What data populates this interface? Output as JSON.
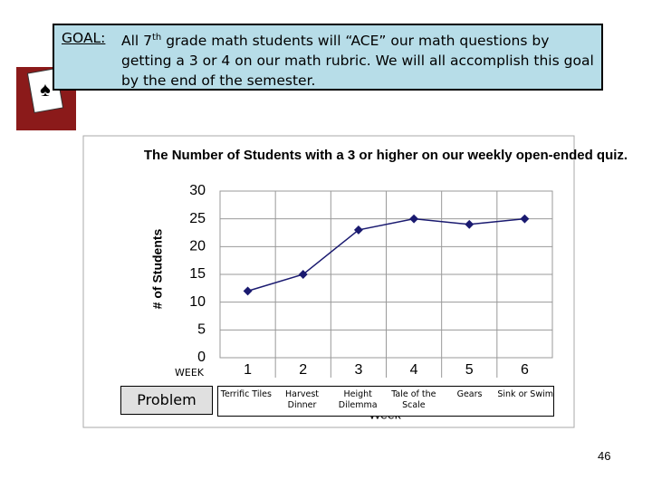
{
  "goal": {
    "label": "GOAL:",
    "text_before_sup": "All 7",
    "sup": "th",
    "text_after_sup": " grade math students will “ACE” our math questions by getting a 3 or 4 on our math rubric. We will all accomplish this goal by the end of the semester."
  },
  "chart_data": {
    "type": "line",
    "title": "The Number of Students with a 3 or higher on our weekly open-ended quiz.",
    "y_label": "# of Students",
    "x_label": "Week",
    "categories": [
      "1",
      "2",
      "3",
      "4",
      "5",
      "6"
    ],
    "series": [
      {
        "name": "Students",
        "color": "#1a1a70",
        "values": [
          12,
          15,
          23,
          25,
          24,
          25
        ]
      }
    ],
    "ylim": [
      0,
      30
    ],
    "yticks": [
      0,
      5,
      10,
      15,
      20,
      25,
      30
    ],
    "grid": true
  },
  "week_label": "WEEK",
  "problem_label": "Problem",
  "problems": [
    "Terrific Tiles",
    "Harvest Dinner",
    "Height Dilemma",
    "Tale of the Scale",
    "Gears",
    "Sink or Swim"
  ],
  "page_number": "46"
}
